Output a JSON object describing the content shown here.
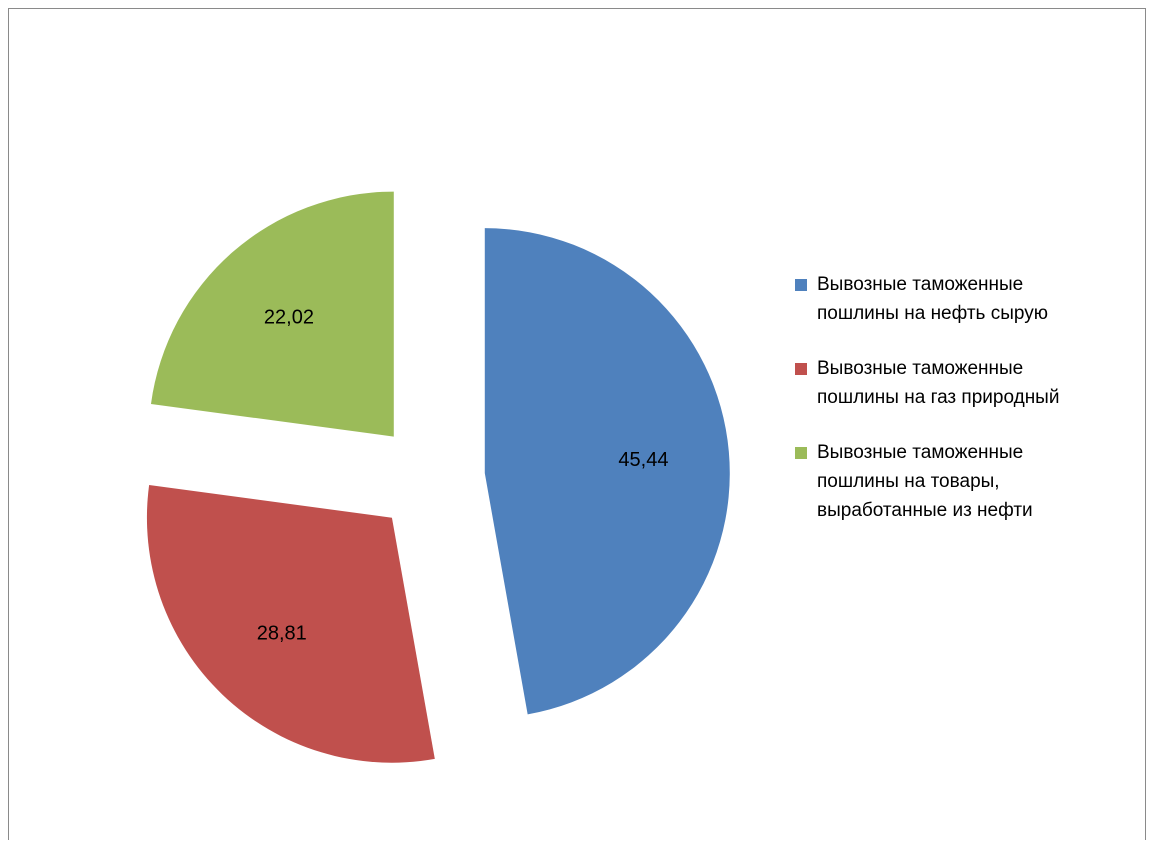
{
  "chart_data": {
    "type": "pie",
    "exploded": true,
    "slices": [
      {
        "name": "Вывозные таможенные пошлины на нефть сырую",
        "label_lines": [
          "Вывозные таможенные",
          "пошлины на нефть сырую"
        ],
        "value": 45.44,
        "label": "45,44",
        "color": "#4f81bd"
      },
      {
        "name": "Вывозные таможенные пошлины на газ природный",
        "label_lines": [
          "Вывозные таможенные",
          "пошлины на газ природный"
        ],
        "value": 28.81,
        "label": "28,81",
        "color": "#c0504d"
      },
      {
        "name": "Вывозные таможенные пошлины на товары, выработанные из нефти",
        "label_lines": [
          "Вывозные таможенные",
          "пошлины на товары,",
          "выработанные из нефти"
        ],
        "value": 22.02,
        "label": "22,02",
        "color": "#9bbb59"
      }
    ],
    "legend_position": "right"
  }
}
